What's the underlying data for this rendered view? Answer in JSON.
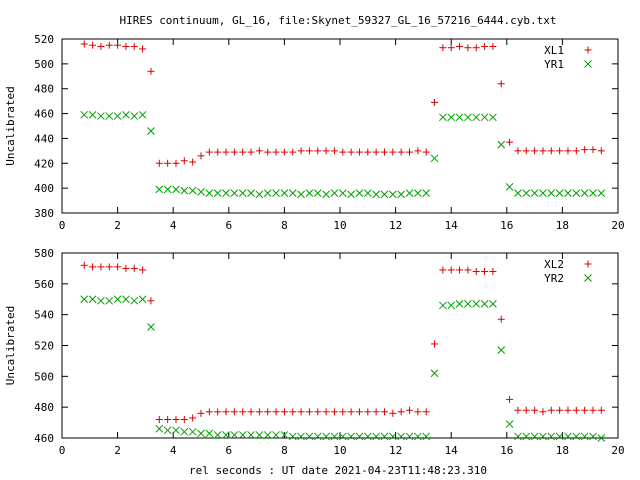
{
  "title": "HIRES continuum, GL_16, file:Skynet_59327_GL_16_57216_6444.cyb.txt",
  "xlabel": "rel seconds : UT date 2021-04-23T11:48:23.310",
  "colors": {
    "red": "#dd0000",
    "green": "#00a000"
  },
  "chart_data": [
    {
      "type": "scatter",
      "ylabel": "Uncalibrated",
      "xlim": [
        0,
        20
      ],
      "ylim": [
        380,
        520
      ],
      "xticks": [
        0,
        2,
        4,
        6,
        8,
        10,
        12,
        14,
        16,
        18,
        20
      ],
      "yticks": [
        380,
        400,
        420,
        440,
        460,
        480,
        500,
        520
      ],
      "legend_position": "top-right",
      "grid": false,
      "series": [
        {
          "name": "XL1",
          "marker": "plus",
          "color": "#dd0000",
          "x": [
            0.8,
            1.1,
            1.4,
            1.7,
            2.0,
            2.3,
            2.6,
            2.9,
            3.2,
            3.5,
            3.8,
            4.1,
            4.4,
            4.7,
            5.0,
            5.3,
            5.6,
            5.9,
            6.2,
            6.5,
            6.8,
            7.1,
            7.4,
            7.7,
            8.0,
            8.3,
            8.6,
            8.9,
            9.2,
            9.5,
            9.8,
            10.1,
            10.4,
            10.7,
            11.0,
            11.3,
            11.6,
            11.9,
            12.2,
            12.5,
            12.8,
            13.1,
            13.4,
            13.7,
            14.0,
            14.3,
            14.6,
            14.9,
            15.2,
            15.5,
            15.8,
            16.1,
            16.4,
            16.7,
            17.0,
            17.3,
            17.6,
            17.9,
            18.2,
            18.5,
            18.8,
            19.1,
            19.4
          ],
          "y": [
            516,
            515,
            514,
            515,
            515,
            514,
            514,
            512,
            494,
            420,
            420,
            420,
            422,
            421,
            426,
            429,
            429,
            429,
            429,
            429,
            429,
            430,
            429,
            429,
            429,
            429,
            430,
            430,
            430,
            430,
            430,
            429,
            429,
            429,
            429,
            429,
            429,
            429,
            429,
            429,
            430,
            429,
            469,
            513,
            513,
            514,
            513,
            513,
            514,
            514,
            484,
            437,
            430,
            430,
            430,
            430,
            430,
            430,
            430,
            430,
            431,
            431,
            430
          ]
        },
        {
          "name": "YR1",
          "marker": "cross",
          "color": "#00a000",
          "x": [
            0.8,
            1.1,
            1.4,
            1.7,
            2.0,
            2.3,
            2.6,
            2.9,
            3.2,
            3.5,
            3.8,
            4.1,
            4.4,
            4.7,
            5.0,
            5.3,
            5.6,
            5.9,
            6.2,
            6.5,
            6.8,
            7.1,
            7.4,
            7.7,
            8.0,
            8.3,
            8.6,
            8.9,
            9.2,
            9.5,
            9.8,
            10.1,
            10.4,
            10.7,
            11.0,
            11.3,
            11.6,
            11.9,
            12.2,
            12.5,
            12.8,
            13.1,
            13.4,
            13.7,
            14.0,
            14.3,
            14.6,
            14.9,
            15.2,
            15.5,
            15.8,
            16.1,
            16.4,
            16.7,
            17.0,
            17.3,
            17.6,
            17.9,
            18.2,
            18.5,
            18.8,
            19.1,
            19.4
          ],
          "y": [
            459,
            459,
            458,
            458,
            458,
            459,
            458,
            459,
            446,
            399,
            399,
            399,
            398,
            398,
            397,
            396,
            396,
            396,
            396,
            396,
            396,
            395,
            396,
            396,
            396,
            396,
            395,
            396,
            396,
            395,
            396,
            396,
            395,
            396,
            396,
            395,
            395,
            395,
            395,
            396,
            396,
            396,
            424,
            457,
            457,
            457,
            457,
            457,
            457,
            457,
            435,
            401,
            396,
            396,
            396,
            396,
            396,
            396,
            396,
            396,
            396,
            396,
            396
          ]
        }
      ]
    },
    {
      "type": "scatter",
      "ylabel": "Uncalibrated",
      "xlim": [
        0,
        20
      ],
      "ylim": [
        460,
        580
      ],
      "xticks": [
        0,
        2,
        4,
        6,
        8,
        10,
        12,
        14,
        16,
        18,
        20
      ],
      "yticks": [
        460,
        480,
        500,
        520,
        540,
        560,
        580
      ],
      "legend_position": "top-right",
      "grid": false,
      "series": [
        {
          "name": "XL2",
          "marker": "plus",
          "color": "#dd0000",
          "x": [
            0.8,
            1.1,
            1.4,
            1.7,
            2.0,
            2.3,
            2.6,
            2.9,
            3.2,
            3.5,
            3.8,
            4.1,
            4.4,
            4.7,
            5.0,
            5.3,
            5.6,
            5.9,
            6.2,
            6.5,
            6.8,
            7.1,
            7.4,
            7.7,
            8.0,
            8.3,
            8.6,
            8.9,
            9.2,
            9.5,
            9.8,
            10.1,
            10.4,
            10.7,
            11.0,
            11.3,
            11.6,
            11.9,
            12.2,
            12.5,
            12.8,
            13.1,
            13.4,
            13.7,
            14.0,
            14.3,
            14.6,
            14.9,
            15.2,
            15.5,
            15.8,
            16.1,
            16.4,
            16.7,
            17.0,
            17.3,
            17.6,
            17.9,
            18.2,
            18.5,
            18.8,
            19.1,
            19.4
          ],
          "y": [
            572,
            571,
            571,
            571,
            571,
            570,
            570,
            569,
            549,
            472,
            472,
            472,
            472,
            473,
            476,
            477,
            477,
            477,
            477,
            477,
            477,
            477,
            477,
            477,
            477,
            477,
            477,
            477,
            477,
            477,
            477,
            477,
            477,
            477,
            477,
            477,
            477,
            476,
            477,
            478,
            477,
            477,
            521,
            569,
            569,
            569,
            569,
            568,
            568,
            568,
            537,
            485,
            478,
            478,
            478,
            477,
            478,
            478,
            478,
            478,
            478,
            478,
            478
          ]
        },
        {
          "name": "YR2",
          "marker": "cross",
          "color": "#00a000",
          "x": [
            0.8,
            1.1,
            1.4,
            1.7,
            2.0,
            2.3,
            2.6,
            2.9,
            3.2,
            3.5,
            3.8,
            4.1,
            4.4,
            4.7,
            5.0,
            5.3,
            5.6,
            5.9,
            6.2,
            6.5,
            6.8,
            7.1,
            7.4,
            7.7,
            8.0,
            8.3,
            8.6,
            8.9,
            9.2,
            9.5,
            9.8,
            10.1,
            10.4,
            10.7,
            11.0,
            11.3,
            11.6,
            11.9,
            12.2,
            12.5,
            12.8,
            13.1,
            13.4,
            13.7,
            14.0,
            14.3,
            14.6,
            14.9,
            15.2,
            15.5,
            15.8,
            16.1,
            16.4,
            16.7,
            17.0,
            17.3,
            17.6,
            17.9,
            18.2,
            18.5,
            18.8,
            19.1,
            19.4
          ],
          "y": [
            550,
            550,
            549,
            549,
            550,
            550,
            549,
            550,
            532,
            466,
            465,
            465,
            464,
            464,
            463,
            463,
            462,
            462,
            462,
            462,
            462,
            462,
            462,
            462,
            462,
            461,
            461,
            461,
            461,
            461,
            461,
            461,
            461,
            461,
            461,
            461,
            461,
            461,
            461,
            461,
            461,
            461,
            502,
            546,
            546,
            547,
            547,
            547,
            547,
            547,
            517,
            469,
            461,
            461,
            461,
            461,
            461,
            461,
            461,
            461,
            461,
            461,
            460
          ]
        }
      ]
    }
  ]
}
